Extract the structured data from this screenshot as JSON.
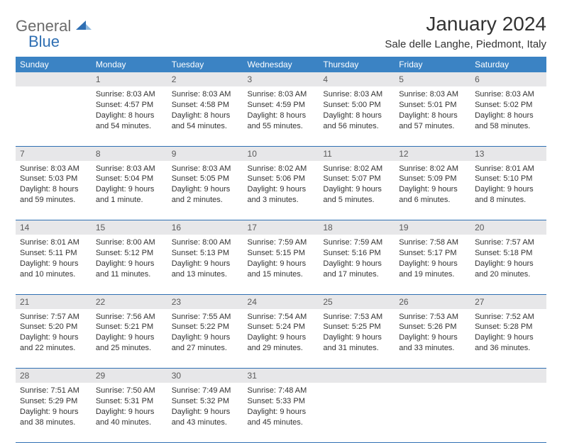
{
  "logo": {
    "general": "General",
    "blue": "Blue"
  },
  "title": "January 2024",
  "location": "Sale delle Langhe, Piedmont, Italy",
  "colors": {
    "header_bg": "#3b83c4",
    "header_fg": "#ffffff",
    "daynum_bg": "#e7e7e9",
    "daynum_fg": "#5a5a5a",
    "rule": "#2f6fb3",
    "logo_gray": "#6b6b6b",
    "logo_blue": "#2f6fb3",
    "text": "#333333",
    "page_bg": "#ffffff"
  },
  "weekdays": [
    "Sunday",
    "Monday",
    "Tuesday",
    "Wednesday",
    "Thursday",
    "Friday",
    "Saturday"
  ],
  "layout": {
    "first_weekday_index": 1,
    "days_in_month": 31
  },
  "days": {
    "1": {
      "sunrise": "8:03 AM",
      "sunset": "4:57 PM",
      "daylight": "8 hours and 54 minutes."
    },
    "2": {
      "sunrise": "8:03 AM",
      "sunset": "4:58 PM",
      "daylight": "8 hours and 54 minutes."
    },
    "3": {
      "sunrise": "8:03 AM",
      "sunset": "4:59 PM",
      "daylight": "8 hours and 55 minutes."
    },
    "4": {
      "sunrise": "8:03 AM",
      "sunset": "5:00 PM",
      "daylight": "8 hours and 56 minutes."
    },
    "5": {
      "sunrise": "8:03 AM",
      "sunset": "5:01 PM",
      "daylight": "8 hours and 57 minutes."
    },
    "6": {
      "sunrise": "8:03 AM",
      "sunset": "5:02 PM",
      "daylight": "8 hours and 58 minutes."
    },
    "7": {
      "sunrise": "8:03 AM",
      "sunset": "5:03 PM",
      "daylight": "8 hours and 59 minutes."
    },
    "8": {
      "sunrise": "8:03 AM",
      "sunset": "5:04 PM",
      "daylight": "9 hours and 1 minute."
    },
    "9": {
      "sunrise": "8:03 AM",
      "sunset": "5:05 PM",
      "daylight": "9 hours and 2 minutes."
    },
    "10": {
      "sunrise": "8:02 AM",
      "sunset": "5:06 PM",
      "daylight": "9 hours and 3 minutes."
    },
    "11": {
      "sunrise": "8:02 AM",
      "sunset": "5:07 PM",
      "daylight": "9 hours and 5 minutes."
    },
    "12": {
      "sunrise": "8:02 AM",
      "sunset": "5:09 PM",
      "daylight": "9 hours and 6 minutes."
    },
    "13": {
      "sunrise": "8:01 AM",
      "sunset": "5:10 PM",
      "daylight": "9 hours and 8 minutes."
    },
    "14": {
      "sunrise": "8:01 AM",
      "sunset": "5:11 PM",
      "daylight": "9 hours and 10 minutes."
    },
    "15": {
      "sunrise": "8:00 AM",
      "sunset": "5:12 PM",
      "daylight": "9 hours and 11 minutes."
    },
    "16": {
      "sunrise": "8:00 AM",
      "sunset": "5:13 PM",
      "daylight": "9 hours and 13 minutes."
    },
    "17": {
      "sunrise": "7:59 AM",
      "sunset": "5:15 PM",
      "daylight": "9 hours and 15 minutes."
    },
    "18": {
      "sunrise": "7:59 AM",
      "sunset": "5:16 PM",
      "daylight": "9 hours and 17 minutes."
    },
    "19": {
      "sunrise": "7:58 AM",
      "sunset": "5:17 PM",
      "daylight": "9 hours and 19 minutes."
    },
    "20": {
      "sunrise": "7:57 AM",
      "sunset": "5:18 PM",
      "daylight": "9 hours and 20 minutes."
    },
    "21": {
      "sunrise": "7:57 AM",
      "sunset": "5:20 PM",
      "daylight": "9 hours and 22 minutes."
    },
    "22": {
      "sunrise": "7:56 AM",
      "sunset": "5:21 PM",
      "daylight": "9 hours and 25 minutes."
    },
    "23": {
      "sunrise": "7:55 AM",
      "sunset": "5:22 PM",
      "daylight": "9 hours and 27 minutes."
    },
    "24": {
      "sunrise": "7:54 AM",
      "sunset": "5:24 PM",
      "daylight": "9 hours and 29 minutes."
    },
    "25": {
      "sunrise": "7:53 AM",
      "sunset": "5:25 PM",
      "daylight": "9 hours and 31 minutes."
    },
    "26": {
      "sunrise": "7:53 AM",
      "sunset": "5:26 PM",
      "daylight": "9 hours and 33 minutes."
    },
    "27": {
      "sunrise": "7:52 AM",
      "sunset": "5:28 PM",
      "daylight": "9 hours and 36 minutes."
    },
    "28": {
      "sunrise": "7:51 AM",
      "sunset": "5:29 PM",
      "daylight": "9 hours and 38 minutes."
    },
    "29": {
      "sunrise": "7:50 AM",
      "sunset": "5:31 PM",
      "daylight": "9 hours and 40 minutes."
    },
    "30": {
      "sunrise": "7:49 AM",
      "sunset": "5:32 PM",
      "daylight": "9 hours and 43 minutes."
    },
    "31": {
      "sunrise": "7:48 AM",
      "sunset": "5:33 PM",
      "daylight": "9 hours and 45 minutes."
    }
  },
  "labels": {
    "sunrise": "Sunrise: ",
    "sunset": "Sunset: ",
    "daylight": "Daylight: "
  }
}
